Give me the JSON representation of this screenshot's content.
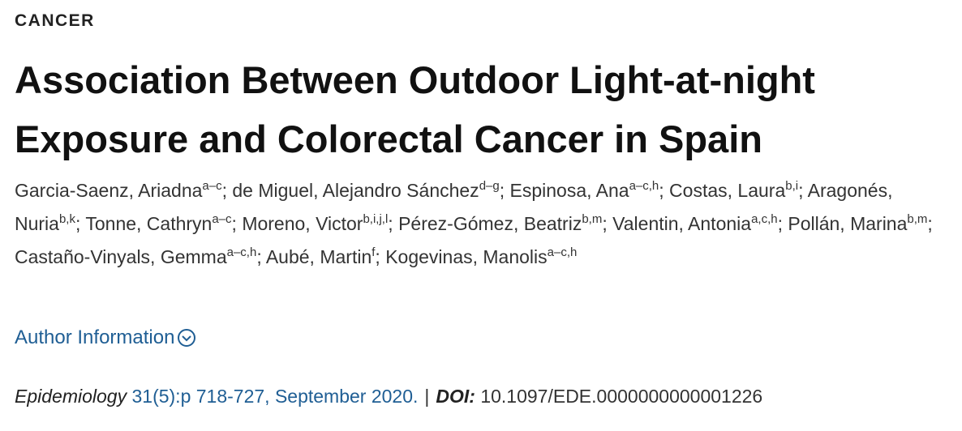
{
  "section": "CANCER",
  "title": "Association Between Outdoor Light-at-night Exposure and Colorectal Cancer in Spain",
  "author_separator": ";",
  "authors": [
    {
      "name": "Garcia-Saenz, Ariadna",
      "affiliations": "a–c"
    },
    {
      "name": "de Miguel, Alejandro Sánchez",
      "affiliations": "d–g"
    },
    {
      "name": "Espinosa, Ana",
      "affiliations": "a–c,h"
    },
    {
      "name": "Costas, Laura",
      "affiliations": "b,i"
    },
    {
      "name": "Aragonés, Nuria",
      "affiliations": "b,k"
    },
    {
      "name": "Tonne, Cathryn",
      "affiliations": "a–c"
    },
    {
      "name": "Moreno, Victor",
      "affiliations": "b,i,j,l"
    },
    {
      "name": "Pérez-Gómez, Beatriz",
      "affiliations": "b,m"
    },
    {
      "name": "Valentin, Antonia",
      "affiliations": "a,c,h"
    },
    {
      "name": "Pollán, Marina",
      "affiliations": "b,m"
    },
    {
      "name": "Castaño-Vinyals, Gemma",
      "affiliations": "a–c,h"
    },
    {
      "name": "Aubé, Martin",
      "affiliations": "f"
    },
    {
      "name": "Kogevinas, Manolis",
      "affiliations": "a–c,h"
    }
  ],
  "author_information": "Author Information",
  "citation": {
    "journal": "Epidemiology",
    "issue": "31(5):p 718-727, September 2020.",
    "separator": "|",
    "doi_label": "DOI:",
    "doi": "10.1097/EDE.0000000000001226"
  }
}
